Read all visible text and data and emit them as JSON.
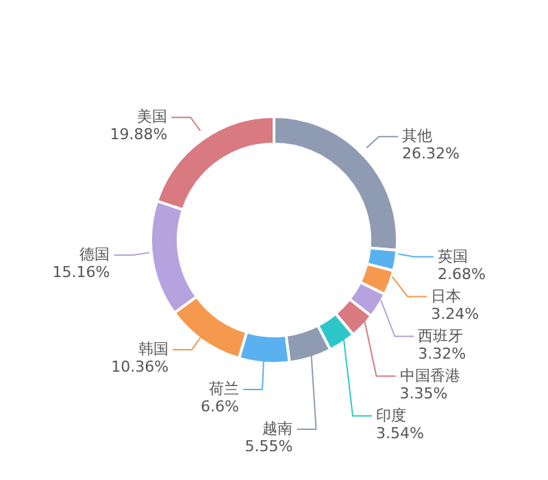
{
  "chart_data": {
    "type": "donut",
    "categories": [
      "其他",
      "英国",
      "日本",
      "西班牙",
      "中国香港",
      "印度",
      "越南",
      "荷兰",
      "韩国",
      "德国",
      "美国"
    ],
    "values": [
      26.32,
      2.68,
      3.24,
      3.32,
      3.35,
      3.54,
      5.55,
      6.6,
      10.36,
      15.16,
      19.88
    ],
    "value_labels": [
      "26.32%",
      "2.68%",
      "3.24%",
      "3.32%",
      "3.35%",
      "3.54%",
      "5.55%",
      "6.6%",
      "10.36%",
      "15.16%",
      "19.88%"
    ],
    "colors": [
      "#8f9bb3",
      "#5ab1ef",
      "#f5994e",
      "#b6a2de",
      "#d87a80",
      "#2ec7c9",
      "#8f9bb3",
      "#5ab1ef",
      "#f5994e",
      "#b6a2de",
      "#d87a80"
    ]
  }
}
